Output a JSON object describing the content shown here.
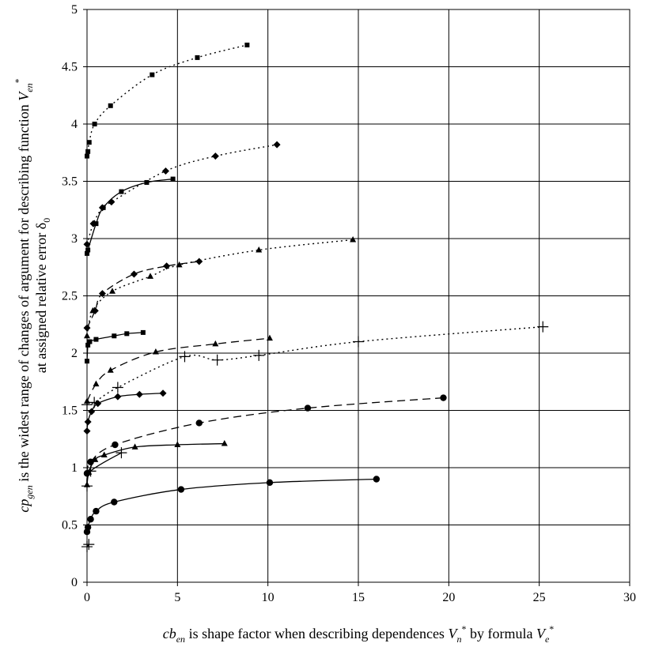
{
  "chart_data": {
    "type": "scatter",
    "title": "",
    "xlim": [
      0,
      30
    ],
    "ylim": [
      0,
      5
    ],
    "grid": true,
    "legend": "none",
    "x_ticks": [
      "0",
      "5",
      "10",
      "15",
      "20",
      "25",
      "30"
    ],
    "y_ticks": [
      "0",
      "0.5",
      "1",
      "1.5",
      "2",
      "2.5",
      "3",
      "3.5",
      "4",
      "4.5",
      "5"
    ],
    "xlabel": {
      "p1": "cb",
      "p1_sub": "en",
      "p2": " is shape factor when describing dependences ",
      "p3": "V",
      "p3_sub": "n",
      "p3_sup": "*",
      "p4": " by formula ",
      "p5": "V",
      "p5_sub": "e",
      "p5_sup": "*"
    },
    "ylabel": {
      "line1_a": "cp",
      "line1_a_sub": "gen",
      "line1_b": " is the widest range of changes of argument for describing function ",
      "line1_c": "V",
      "line1_c_sub": "en",
      "line1_c_sup": "*",
      "line2_a": "at assigned relative error δ",
      "line2_a_sub": "0"
    },
    "series": [
      {
        "marker": "square",
        "dash": "2,4",
        "points": [
          [
            0,
            3.72
          ],
          [
            0.05,
            3.76
          ],
          [
            0.12,
            3.84
          ],
          [
            0.42,
            4.0
          ],
          [
            1.3,
            4.16
          ],
          [
            3.6,
            4.43
          ],
          [
            6.1,
            4.58
          ],
          [
            8.85,
            4.69
          ]
        ]
      },
      {
        "marker": "diamond",
        "dash": "2,4",
        "points": [
          [
            0,
            2.95
          ],
          [
            0.35,
            3.13
          ],
          [
            0.85,
            3.27
          ],
          [
            1.35,
            3.32
          ],
          [
            4.35,
            3.59
          ],
          [
            7.1,
            3.72
          ],
          [
            10.5,
            3.82
          ]
        ]
      },
      {
        "marker": "square",
        "dash": "",
        "points": [
          [
            0,
            2.87
          ],
          [
            0.05,
            2.9
          ],
          [
            0.5,
            3.13
          ],
          [
            0.9,
            3.27
          ],
          [
            1.9,
            3.41
          ],
          [
            3.3,
            3.49
          ],
          [
            4.75,
            3.52
          ]
        ]
      },
      {
        "marker": "triangle",
        "dash": "2,4",
        "points": [
          [
            0,
            2.15
          ],
          [
            0.32,
            2.37
          ],
          [
            1.4,
            2.54
          ],
          [
            3.5,
            2.67
          ],
          [
            5.1,
            2.77
          ],
          [
            9.5,
            2.9
          ],
          [
            14.7,
            2.99
          ]
        ]
      },
      {
        "marker": "diamond",
        "dash": "9,5",
        "points": [
          [
            0,
            2.22
          ],
          [
            0.45,
            2.37
          ],
          [
            0.85,
            2.52
          ],
          [
            2.6,
            2.69
          ],
          [
            4.4,
            2.76
          ],
          [
            6.2,
            2.8
          ]
        ]
      },
      {
        "marker": "square",
        "dash": "",
        "points": [
          [
            0,
            1.93
          ],
          [
            0.05,
            2.07
          ],
          [
            0.15,
            2.1
          ],
          [
            0.5,
            2.12
          ],
          [
            1.5,
            2.15
          ],
          [
            2.2,
            2.17
          ],
          [
            3.1,
            2.18
          ]
        ]
      },
      {
        "marker": "triangle",
        "dash": "10,6",
        "points": [
          [
            0,
            1.58
          ],
          [
            0.5,
            1.73
          ],
          [
            1.3,
            1.85
          ],
          [
            3.8,
            2.01
          ],
          [
            7.1,
            2.08
          ],
          [
            10.1,
            2.13
          ]
        ]
      },
      {
        "marker": "plus",
        "dash": "2,4",
        "points": [
          [
            0,
            1.55
          ],
          [
            0.4,
            1.57
          ],
          [
            1.7,
            1.7
          ],
          [
            5.4,
            1.97
          ],
          [
            7.2,
            1.94
          ],
          [
            9.5,
            1.98
          ],
          [
            15.0,
            2.1
          ],
          [
            25.2,
            2.23
          ]
        ]
      },
      {
        "marker": "diamond",
        "dash": "",
        "points": [
          [
            0,
            1.32
          ],
          [
            0.05,
            1.4
          ],
          [
            0.25,
            1.49
          ],
          [
            0.6,
            1.56
          ],
          [
            1.7,
            1.62
          ],
          [
            2.9,
            1.64
          ],
          [
            4.2,
            1.65
          ]
        ]
      },
      {
        "marker": "circle",
        "dash": "10,6",
        "points": [
          [
            0,
            0.95
          ],
          [
            0.2,
            1.05
          ],
          [
            1.55,
            1.2
          ],
          [
            6.2,
            1.39
          ],
          [
            12.2,
            1.52
          ],
          [
            19.7,
            1.61
          ]
        ]
      },
      {
        "marker": "triangle",
        "dash": "",
        "points": [
          [
            0,
            0.85
          ],
          [
            0.1,
            0.96
          ],
          [
            0.45,
            1.07
          ],
          [
            0.95,
            1.11
          ],
          [
            2.65,
            1.18
          ],
          [
            5.0,
            1.2
          ],
          [
            7.6,
            1.21
          ]
        ]
      },
      {
        "marker": "plus",
        "dash": "",
        "points": [
          [
            0,
            0.84
          ],
          [
            0.2,
            0.97
          ],
          [
            1.9,
            1.13
          ]
        ]
      },
      {
        "marker": "circle",
        "dash": "",
        "points": [
          [
            0,
            0.44
          ],
          [
            0.05,
            0.48
          ],
          [
            0.2,
            0.55
          ],
          [
            0.5,
            0.62
          ],
          [
            1.5,
            0.7
          ],
          [
            5.2,
            0.81
          ],
          [
            10.1,
            0.87
          ],
          [
            16.0,
            0.9
          ]
        ]
      },
      {
        "marker": "plus",
        "dash": "",
        "points": [
          [
            0,
            0.31
          ],
          [
            0.1,
            0.33
          ]
        ]
      }
    ]
  }
}
